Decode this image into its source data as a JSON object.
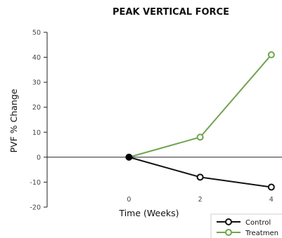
{
  "chart_data": {
    "type": "line",
    "title": "PEAK VERTICAL FORCE",
    "xlabel": "Time (Weeks)",
    "ylabel": "PVF % Change",
    "x": [
      0,
      2,
      4
    ],
    "x_ticks": [
      "0",
      "2",
      "4"
    ],
    "y_ticks": [
      50,
      40,
      30,
      20,
      10,
      0,
      -10,
      -20
    ],
    "ylim": [
      -20,
      50
    ],
    "xlim": [
      -2.3,
      4.3
    ],
    "grid": false,
    "legend_position": "bottom-right",
    "series": [
      {
        "name": "Control",
        "color": "#111111",
        "marker": "circle-open",
        "values": [
          0,
          -8,
          -12
        ]
      },
      {
        "name": "Treatmen",
        "color": "#6ea64a",
        "marker": "circle-open",
        "values": [
          0,
          8,
          41
        ]
      }
    ],
    "origin_marker": {
      "x": 0,
      "y": 0,
      "color": "#000000",
      "style": "filled-circle"
    }
  }
}
